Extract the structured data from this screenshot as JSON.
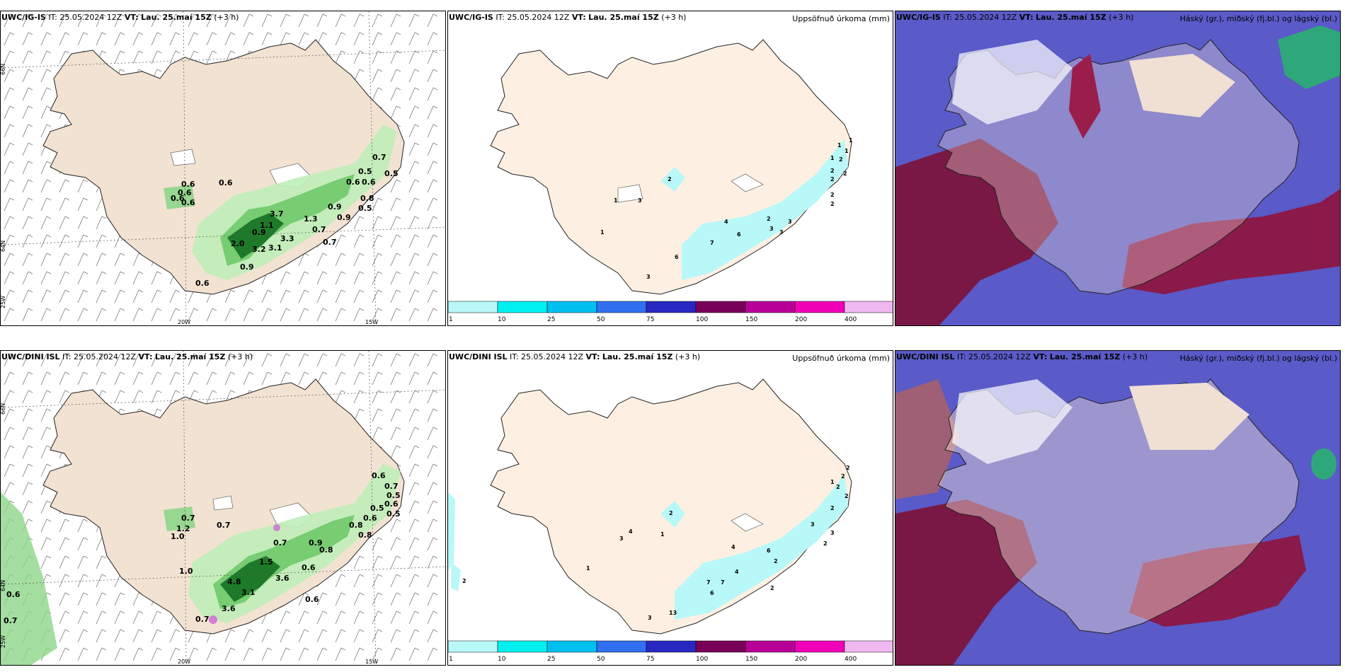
{
  "rows": [
    {
      "model": "UWC/IG-IS",
      "it_label": "IT:",
      "it_value": "25.05.2024 12Z",
      "vt_label": "VT:",
      "vt_value": "Lau. 25.maí 15Z",
      "lead": "(+3 h)",
      "wind_values": [
        "0.6",
        "0.6",
        "0.6",
        "0.6",
        "0.6",
        "0.7",
        "0.5",
        "0.5",
        "0.6",
        "0.6",
        "0.8",
        "0.5",
        "0.9",
        "0.9",
        "1.3",
        "0.9",
        "3.3",
        "2.0",
        "3.2",
        "3.1",
        "0.9",
        "0.6",
        "1.1",
        "3.7",
        "0.7",
        "0.7"
      ],
      "precip_values": [
        "1",
        "2",
        "3",
        "1",
        "1",
        "2",
        "1",
        "1",
        "1",
        "2",
        "2",
        "2",
        "2",
        "2",
        "3",
        "4",
        "6",
        "7",
        "3",
        "3",
        "2",
        "6",
        "3"
      ],
      "lat_labels": [
        "66N",
        "64N"
      ],
      "lon_labels": [
        "20W",
        "15W",
        "25W"
      ]
    },
    {
      "model": "UWC/DINI ISL",
      "it_label": "IT:",
      "it_value": "25.05.2024 12Z",
      "vt_label": "VT:",
      "vt_value": "Lau. 25.maí 15Z",
      "lead": "(+3 h)",
      "wind_values": [
        "0.7",
        "1.2",
        "1.0",
        "0.7",
        "1.0",
        "0.7",
        "0.5",
        "0.6",
        "0.5",
        "0.5",
        "0.6",
        "0.8",
        "0.8",
        "0.8",
        "0.9",
        "0.7",
        "0.6",
        "0.6",
        "1.5",
        "3.6",
        "3.1",
        "4.8",
        "3.6",
        "0.7",
        "0.6",
        "0.7",
        "0.6"
      ],
      "precip_values": [
        "1",
        "2",
        "4",
        "3",
        "2",
        "1",
        "1",
        "2",
        "2",
        "2",
        "2",
        "2",
        "3",
        "4",
        "6",
        "7",
        "7",
        "4",
        "6",
        "2",
        "13",
        "3",
        "2",
        "3",
        "2"
      ],
      "lat_labels": [
        "66N",
        "64N"
      ],
      "lon_labels": [
        "20W",
        "15W",
        "25W"
      ]
    }
  ],
  "titles": {
    "precip": "Uppsöfnuð úrkoma (mm)",
    "cloud": "Háský (gr.), miðský (fj.bl.) og lágský (bl.)"
  },
  "colorbar": {
    "ticks": [
      "1",
      "10",
      "25",
      "50",
      "75",
      "100",
      "150",
      "200",
      "400"
    ],
    "colors": [
      "#b8f8f8",
      "#00f0f0",
      "#00c0f0",
      "#3070f0",
      "#2828c0",
      "#780058",
      "#b80098",
      "#f000b8",
      "#f0b8f0"
    ]
  }
}
